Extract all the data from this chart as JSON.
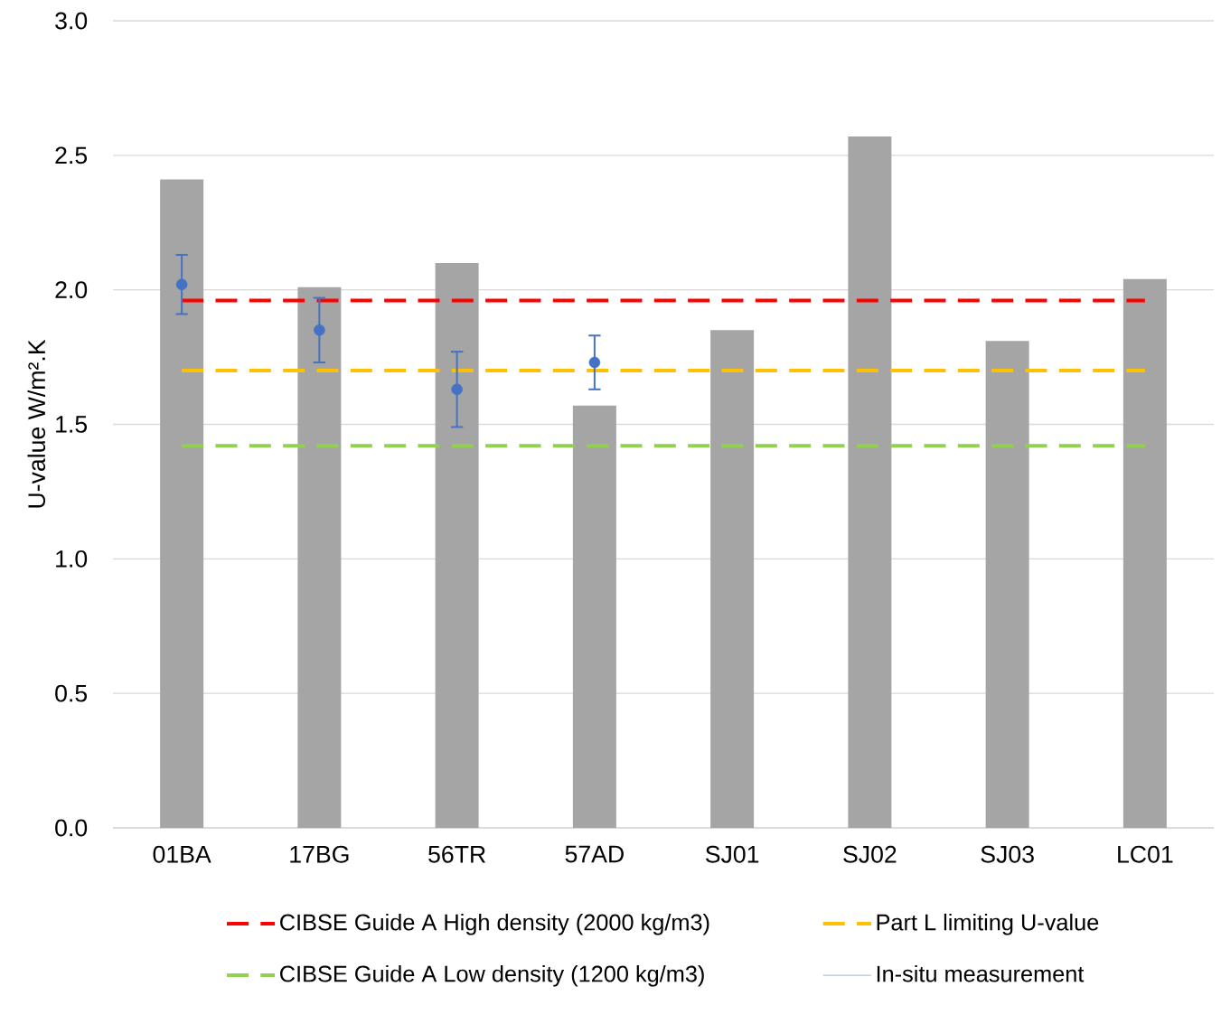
{
  "chart_data": {
    "type": "bar",
    "ylabel": "U-value W/m².K",
    "categories": [
      "01BA",
      "17BG",
      "56TR",
      "57AD",
      "SJ01",
      "SJ02",
      "SJ03",
      "LC01"
    ],
    "ylim": [
      0,
      3
    ],
    "yticks": [
      {
        "value": 0,
        "label": "0.0"
      },
      {
        "value": 0.5,
        "label": "0.5"
      },
      {
        "value": 1,
        "label": "1.0"
      },
      {
        "value": 1.5,
        "label": "1.5"
      },
      {
        "value": 2,
        "label": "2.0"
      },
      {
        "value": 2.5,
        "label": "2.5"
      },
      {
        "value": 3,
        "label": "3.0"
      }
    ],
    "grid": "y",
    "legend": "bottom",
    "series": [
      {
        "color": "#a5a5a5",
        "values": [
          2.41,
          2.01,
          2.1,
          1.57,
          1.85,
          2.57,
          1.81,
          2.04
        ]
      },
      {
        "name": "CIBSE Guide A High density (2000 kg/m3)",
        "type": "line",
        "color": "#ff0000",
        "line_style": "dashed",
        "marker": "none",
        "values": [
          1.96,
          1.96,
          1.96,
          1.96,
          1.96,
          1.96,
          1.96,
          1.96
        ]
      },
      {
        "name": "Part L limiting U-value",
        "type": "line",
        "color": "#ffc000",
        "line_style": "dashed",
        "marker": "none",
        "values": [
          1.7,
          1.7,
          1.7,
          1.7,
          1.7,
          1.7,
          1.7,
          1.7
        ]
      },
      {
        "name": "CIBSE Guide A Low density (1200 kg/m3)",
        "type": "line",
        "color": "#92d050",
        "line_style": "dashed",
        "marker": "none",
        "values": [
          1.42,
          1.42,
          1.42,
          1.42,
          1.42,
          1.42,
          1.42,
          1.42
        ]
      },
      {
        "name": "In-situ measurement",
        "type": "scatter",
        "color": "#4472c4",
        "marker": "circle",
        "values": [
          2.02,
          1.85,
          1.63,
          1.73,
          null,
          null,
          null,
          null
        ],
        "errors": [
          0.11,
          0.12,
          0.14,
          0.1,
          null,
          null,
          null,
          null
        ]
      }
    ]
  }
}
